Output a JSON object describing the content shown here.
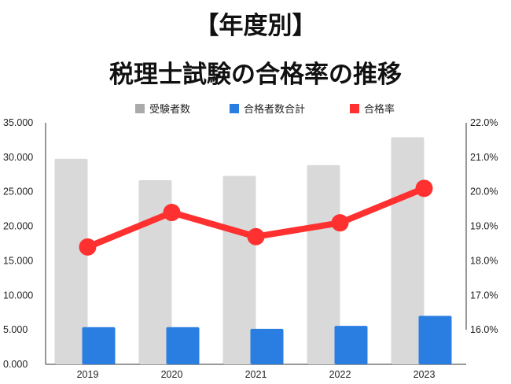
{
  "title_line1": "【年度別】",
  "title_line2": "税理士試験の合格率の推移",
  "chart_data": {
    "type": "bar",
    "categories": [
      "2019",
      "2020",
      "2021",
      "2022",
      "2023"
    ],
    "series": [
      {
        "name": "受験者数",
        "type": "bar",
        "axis": "left",
        "color": "#d9d9d9",
        "values": [
          29779,
          26673,
          27299,
          28853,
          32899
        ]
      },
      {
        "name": "合格者数合計",
        "type": "bar",
        "axis": "left",
        "color": "#2a7de1",
        "values": [
          5388,
          5390,
          5139,
          5579,
          7025
        ]
      },
      {
        "name": "合格率",
        "type": "line",
        "axis": "right",
        "color": "#ff3030",
        "values": [
          18.4,
          19.4,
          18.7,
          19.1,
          20.1
        ]
      }
    ],
    "y_left": {
      "min": 0,
      "max": 35000,
      "ticks": [
        "0.000",
        "5.000",
        "10.000",
        "15.000",
        "20.000",
        "25.000",
        "30.000",
        "35.000"
      ]
    },
    "y_right": {
      "min": 15.0,
      "max": 22.0,
      "visible_from": 16.0,
      "ticks": [
        "16.0%",
        "17.0%",
        "18.0%",
        "19.0%",
        "20.0%",
        "21.0%",
        "22.0%"
      ]
    },
    "legend_position": "top",
    "grid": false
  }
}
